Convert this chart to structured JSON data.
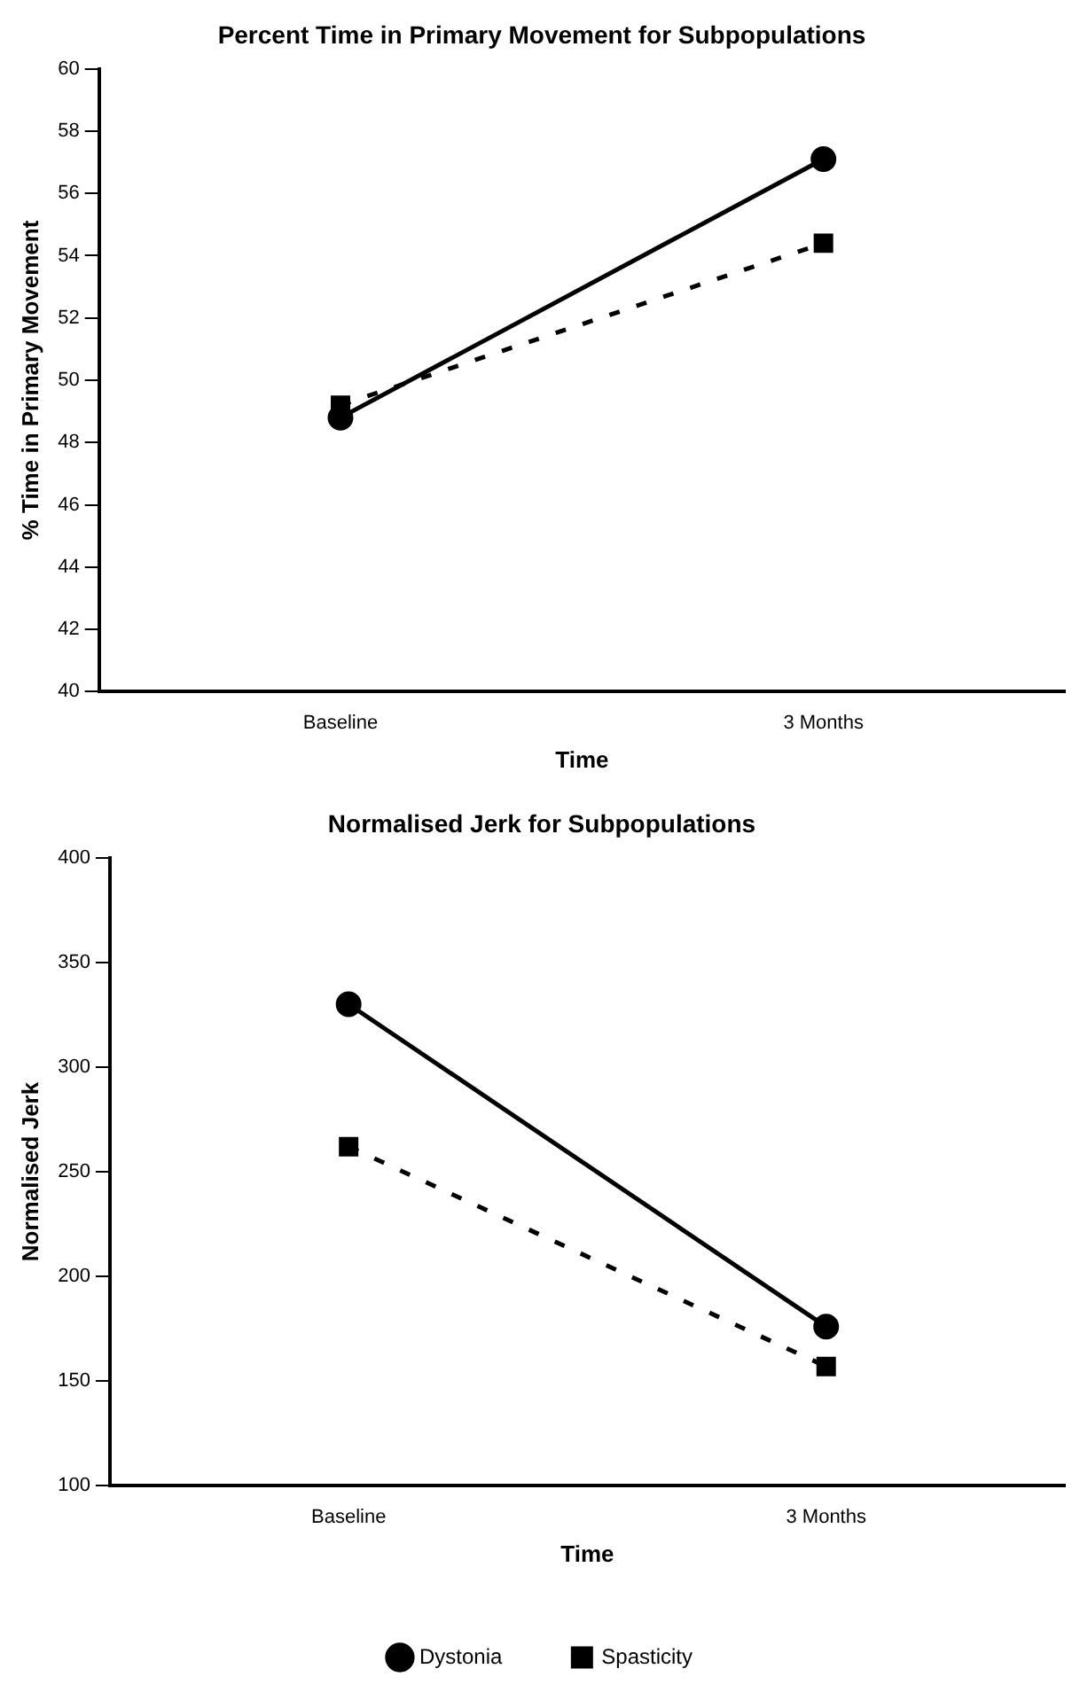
{
  "chart_data": [
    {
      "type": "line",
      "title": "Percent Time in Primary Movement for Subpopulations",
      "xlabel": "Time",
      "ylabel": "% Time in Primary Movement",
      "categories": [
        "Baseline",
        "3 Months"
      ],
      "series": [
        {
          "color": "#000000",
          "marker": "circle",
          "line_style": "solid",
          "values": [
            48.8,
            57.1
          ]
        },
        {
          "color": "#000000",
          "marker": "square",
          "line_style": "dashed",
          "values": [
            49.2,
            54.4
          ]
        }
      ],
      "ylim": [
        40,
        60
      ],
      "yticks": [
        40,
        42,
        44,
        46,
        48,
        50,
        52,
        54,
        56,
        58,
        60
      ],
      "grid": false,
      "legend": false
    },
    {
      "type": "line",
      "title": "Normalised Jerk for Subpopulations",
      "xlabel": "Time",
      "ylabel": "Normalised Jerk",
      "categories": [
        "Baseline",
        "3 Months"
      ],
      "series": [
        {
          "name": "Dystonia",
          "color": "#000000",
          "marker": "circle",
          "line_style": "solid",
          "values": [
            330,
            176
          ]
        },
        {
          "name": "Spasticity",
          "color": "#000000",
          "marker": "square",
          "line_style": "dashed",
          "values": [
            262,
            157
          ]
        }
      ],
      "ylim": [
        100,
        400
      ],
      "yticks": [
        100,
        150,
        200,
        250,
        300,
        350,
        400
      ],
      "grid": false,
      "legend": "bottom"
    }
  ]
}
